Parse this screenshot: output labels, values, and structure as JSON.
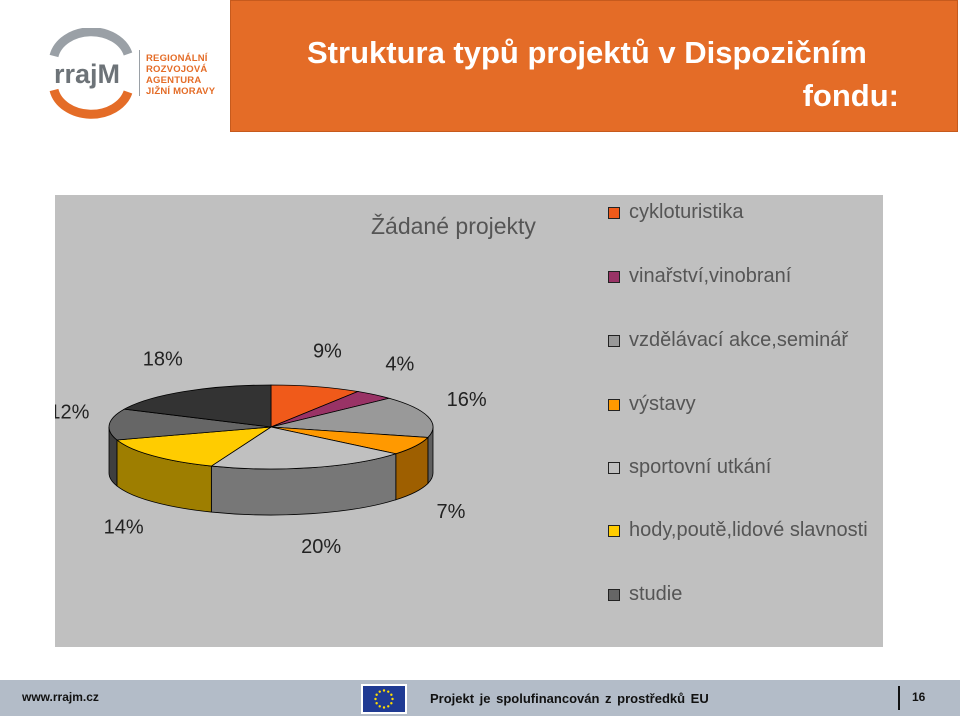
{
  "header": {
    "title_line1": "Struktura typů projektů v Dispozičním",
    "title_line2": "fondu:",
    "logo_text": "rrajM",
    "logo_org_lines": [
      "REGIONÁLNÍ",
      "ROZVOJOVÁ",
      "AGENTURA",
      "JIŽNÍ MORAVY"
    ]
  },
  "chart_data": {
    "type": "pie",
    "title": "Žádané projekty",
    "legend_position": "right",
    "slices": [
      {
        "name": "cykloturistika",
        "value": 9,
        "label": "9%",
        "color": "#f05a1a"
      },
      {
        "name": "vinařství,vinobraní",
        "value": 4,
        "label": "4%",
        "color": "#993366"
      },
      {
        "name": "vzdělávací akce,seminář",
        "value": 16,
        "label": "16%",
        "color": "#999999"
      },
      {
        "name": "výstavy",
        "value": 7,
        "label": "7%",
        "color": "#ff9900"
      },
      {
        "name": "sportovní utkání",
        "value": 20,
        "label": "20%",
        "color": "#c0c0c0"
      },
      {
        "name": "hody,poutě,lidové slavnosti",
        "value": 14,
        "label": "14%",
        "color": "#ffcc00"
      },
      {
        "name": "studie",
        "value": 12,
        "label": "12%",
        "color": "#666666"
      },
      {
        "name": "",
        "value": 18,
        "label": "18%",
        "color": "#333333"
      }
    ]
  },
  "footer": {
    "url": "www.rrajm.cz",
    "text": "Projekt je spolufinancován z prostředků EU",
    "page": "16"
  }
}
